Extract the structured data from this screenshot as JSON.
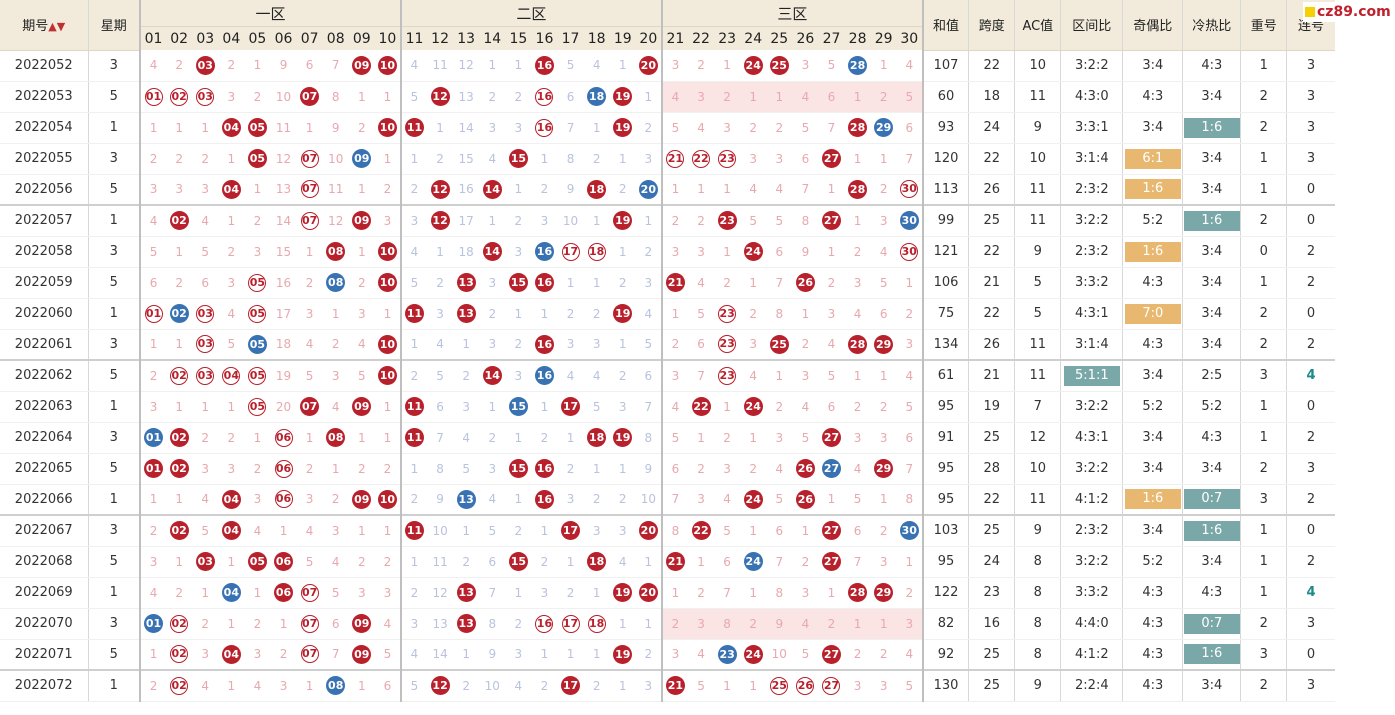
{
  "brand": "cz89.com",
  "header": {
    "issue_label": "期号",
    "sort_icon": "▲▼",
    "weekday_label": "星期",
    "zones": [
      "一区",
      "二区",
      "三区"
    ],
    "numbers": [
      "01",
      "02",
      "03",
      "04",
      "05",
      "06",
      "07",
      "08",
      "09",
      "10",
      "11",
      "12",
      "13",
      "14",
      "15",
      "16",
      "17",
      "18",
      "19",
      "20",
      "21",
      "22",
      "23",
      "24",
      "25",
      "26",
      "27",
      "28",
      "29",
      "30"
    ],
    "stats": [
      "和值",
      "跨度",
      "AC值",
      "区间比",
      "奇偶比",
      "冷热比",
      "重号",
      "连号"
    ]
  },
  "rows": [
    {
      "issue": "2022052",
      "wd": "3",
      "group": false,
      "cells": [
        "4",
        "2",
        "R03",
        "2",
        "1",
        "9",
        "6",
        "7",
        "R09",
        "R10",
        "4",
        "11",
        "12",
        "1",
        "1",
        "R16",
        "5",
        "4",
        "1",
        "R20",
        "3",
        "2",
        "1",
        "R24",
        "R25",
        "3",
        "5",
        "B28",
        "1",
        "4"
      ],
      "sum": "107",
      "span": "22",
      "ac": "10",
      "qj": "3:2:2",
      "jo": "3:4",
      "lr": "4:3",
      "ch": "1",
      "lh": "3"
    },
    {
      "issue": "2022053",
      "wd": "5",
      "group": false,
      "pink": true,
      "cells": [
        "O01",
        "O02",
        "O03",
        "3",
        "2",
        "10",
        "R07",
        "8",
        "1",
        "1",
        "5",
        "R12",
        "13",
        "2",
        "2",
        "O16",
        "6",
        "B18",
        "R19",
        "1",
        "4",
        "3",
        "2",
        "1",
        "1",
        "4",
        "6",
        "1",
        "2",
        "5"
      ],
      "sum": "60",
      "span": "18",
      "ac": "11",
      "qj": "4:3:0",
      "jo": "4:3",
      "lr": "3:4",
      "ch": "2",
      "lh": "3"
    },
    {
      "issue": "2022054",
      "wd": "1",
      "group": false,
      "cells": [
        "1",
        "1",
        "1",
        "R04",
        "R05",
        "11",
        "1",
        "9",
        "2",
        "R10",
        "R11",
        "1",
        "14",
        "3",
        "3",
        "O16",
        "7",
        "1",
        "R19",
        "2",
        "5",
        "4",
        "3",
        "2",
        "2",
        "5",
        "7",
        "R28",
        "B29",
        "6"
      ],
      "sum": "93",
      "span": "24",
      "ac": "9",
      "qj": "3:3:1",
      "jo": "3:4",
      "lr": "T1:6",
      "ch": "2",
      "lh": "3"
    },
    {
      "issue": "2022055",
      "wd": "3",
      "group": false,
      "cells": [
        "2",
        "2",
        "2",
        "1",
        "R05",
        "12",
        "O07",
        "10",
        "B09",
        "1",
        "1",
        "2",
        "15",
        "4",
        "R15",
        "1",
        "8",
        "2",
        "1",
        "3",
        "O21",
        "O22",
        "O23",
        "3",
        "3",
        "6",
        "R27",
        "1",
        "1",
        "7"
      ],
      "sum": "120",
      "span": "22",
      "ac": "10",
      "qj": "3:1:4",
      "jo": "O6:1",
      "lr": "3:4",
      "ch": "1",
      "lh": "3"
    },
    {
      "issue": "2022056",
      "wd": "5",
      "group": false,
      "cells": [
        "3",
        "3",
        "3",
        "R04",
        "1",
        "13",
        "O07",
        "11",
        "1",
        "2",
        "2",
        "R12",
        "16",
        "R14",
        "1",
        "2",
        "9",
        "R18",
        "2",
        "B20",
        "1",
        "1",
        "1",
        "4",
        "4",
        "7",
        "1",
        "R28",
        "2",
        "O30"
      ],
      "sum": "113",
      "span": "26",
      "ac": "11",
      "qj": "2:3:2",
      "jo": "O1:6",
      "lr": "3:4",
      "ch": "1",
      "lh": "0"
    },
    {
      "issue": "2022057",
      "wd": "1",
      "group": true,
      "cells": [
        "4",
        "R02",
        "4",
        "1",
        "2",
        "14",
        "O07",
        "12",
        "R09",
        "3",
        "3",
        "R12",
        "17",
        "1",
        "2",
        "3",
        "10",
        "1",
        "R19",
        "1",
        "2",
        "2",
        "R23",
        "5",
        "5",
        "8",
        "R27",
        "1",
        "3",
        "B30"
      ],
      "sum": "99",
      "span": "25",
      "ac": "11",
      "qj": "3:2:2",
      "jo": "5:2",
      "lr": "T1:6",
      "ch": "2",
      "lh": "0"
    },
    {
      "issue": "2022058",
      "wd": "3",
      "group": false,
      "cells": [
        "5",
        "1",
        "5",
        "2",
        "3",
        "15",
        "1",
        "R08",
        "1",
        "R10",
        "4",
        "1",
        "18",
        "R14",
        "3",
        "B16",
        "O17",
        "O18",
        "1",
        "2",
        "3",
        "3",
        "1",
        "R24",
        "6",
        "9",
        "1",
        "2",
        "4",
        "O30"
      ],
      "sum": "121",
      "span": "22",
      "ac": "9",
      "qj": "2:3:2",
      "jo": "O1:6",
      "lr": "3:4",
      "ch": "0",
      "lh": "2"
    },
    {
      "issue": "2022059",
      "wd": "5",
      "group": false,
      "cells": [
        "6",
        "2",
        "6",
        "3",
        "O05",
        "16",
        "2",
        "B08",
        "2",
        "R10",
        "5",
        "2",
        "R13",
        "3",
        "R15",
        "R16",
        "1",
        "1",
        "2",
        "3",
        "R21",
        "4",
        "2",
        "1",
        "7",
        "R26",
        "2",
        "3",
        "5",
        "1"
      ],
      "sum": "106",
      "span": "21",
      "ac": "5",
      "qj": "3:3:2",
      "jo": "4:3",
      "lr": "3:4",
      "ch": "1",
      "lh": "2"
    },
    {
      "issue": "2022060",
      "wd": "1",
      "group": false,
      "cells": [
        "O01",
        "B02",
        "O03",
        "4",
        "O05",
        "17",
        "3",
        "1",
        "3",
        "1",
        "R11",
        "3",
        "R13",
        "2",
        "1",
        "1",
        "2",
        "2",
        "R19",
        "4",
        "1",
        "5",
        "O23",
        "2",
        "8",
        "1",
        "3",
        "4",
        "6",
        "2"
      ],
      "sum": "75",
      "span": "22",
      "ac": "5",
      "qj": "4:3:1",
      "jo": "O7:0",
      "lr": "3:4",
      "ch": "2",
      "lh": "0"
    },
    {
      "issue": "2022061",
      "wd": "3",
      "group": false,
      "cells": [
        "1",
        "1",
        "O03",
        "5",
        "B05",
        "18",
        "4",
        "2",
        "4",
        "R10",
        "1",
        "4",
        "1",
        "3",
        "2",
        "R16",
        "3",
        "3",
        "1",
        "5",
        "2",
        "6",
        "O23",
        "3",
        "R25",
        "2",
        "4",
        "R28",
        "R29",
        "3"
      ],
      "sum": "134",
      "span": "26",
      "ac": "11",
      "qj": "3:1:4",
      "jo": "4:3",
      "lr": "3:4",
      "ch": "2",
      "lh": "2"
    },
    {
      "issue": "2022062",
      "wd": "5",
      "group": true,
      "cells": [
        "2",
        "O02",
        "O03",
        "O04",
        "O05",
        "19",
        "5",
        "3",
        "5",
        "R10",
        "2",
        "5",
        "2",
        "R14",
        "3",
        "B16",
        "4",
        "4",
        "2",
        "6",
        "3",
        "7",
        "O23",
        "4",
        "1",
        "3",
        "5",
        "1",
        "1",
        "4"
      ],
      "sum": "61",
      "span": "21",
      "ac": "11",
      "qj": "T5:1:1",
      "jo": "3:4",
      "lr": "2:5",
      "ch": "3",
      "lh": "L4"
    },
    {
      "issue": "2022063",
      "wd": "1",
      "group": false,
      "cells": [
        "3",
        "1",
        "1",
        "1",
        "O05",
        "20",
        "R07",
        "4",
        "R09",
        "1",
        "R11",
        "6",
        "3",
        "1",
        "B15",
        "1",
        "R17",
        "5",
        "3",
        "7",
        "4",
        "R22",
        "1",
        "R24",
        "2",
        "4",
        "6",
        "2",
        "2",
        "5"
      ],
      "sum": "95",
      "span": "19",
      "ac": "7",
      "qj": "3:2:2",
      "jo": "5:2",
      "lr": "5:2",
      "ch": "1",
      "lh": "0"
    },
    {
      "issue": "2022064",
      "wd": "3",
      "group": false,
      "cells": [
        "B01",
        "R02",
        "2",
        "2",
        "1",
        "O06",
        "1",
        "R08",
        "1",
        "1",
        "R11",
        "7",
        "4",
        "2",
        "1",
        "2",
        "1",
        "R18",
        "R19",
        "8",
        "5",
        "1",
        "2",
        "1",
        "3",
        "5",
        "R27",
        "3",
        "3",
        "6"
      ],
      "sum": "91",
      "span": "25",
      "ac": "12",
      "qj": "4:3:1",
      "jo": "3:4",
      "lr": "4:3",
      "ch": "1",
      "lh": "2"
    },
    {
      "issue": "2022065",
      "wd": "5",
      "group": false,
      "cells": [
        "R01",
        "R02",
        "3",
        "3",
        "2",
        "O06",
        "2",
        "1",
        "2",
        "2",
        "1",
        "8",
        "5",
        "3",
        "R15",
        "R16",
        "2",
        "1",
        "1",
        "9",
        "6",
        "2",
        "3",
        "2",
        "4",
        "R26",
        "B27",
        "4",
        "R29",
        "7"
      ],
      "sum": "95",
      "span": "28",
      "ac": "10",
      "qj": "3:2:2",
      "jo": "3:4",
      "lr": "3:4",
      "ch": "2",
      "lh": "3"
    },
    {
      "issue": "2022066",
      "wd": "1",
      "group": false,
      "cells": [
        "1",
        "1",
        "4",
        "R04",
        "3",
        "O06",
        "3",
        "2",
        "R09",
        "R10",
        "2",
        "9",
        "B13",
        "4",
        "1",
        "R16",
        "3",
        "2",
        "2",
        "10",
        "7",
        "3",
        "4",
        "R24",
        "5",
        "R26",
        "1",
        "5",
        "1",
        "8"
      ],
      "sum": "95",
      "span": "22",
      "ac": "11",
      "qj": "4:1:2",
      "jo": "O1:6",
      "lr": "T0:7",
      "ch": "3",
      "lh": "2"
    },
    {
      "issue": "2022067",
      "wd": "3",
      "group": true,
      "cells": [
        "2",
        "R02",
        "5",
        "R04",
        "4",
        "1",
        "4",
        "3",
        "1",
        "1",
        "R11",
        "10",
        "1",
        "5",
        "2",
        "1",
        "R17",
        "3",
        "3",
        "R20",
        "8",
        "R22",
        "5",
        "1",
        "6",
        "1",
        "R27",
        "6",
        "2",
        "B30"
      ],
      "sum": "103",
      "span": "25",
      "ac": "9",
      "qj": "2:3:2",
      "jo": "3:4",
      "lr": "T1:6",
      "ch": "1",
      "lh": "0"
    },
    {
      "issue": "2022068",
      "wd": "5",
      "group": false,
      "cells": [
        "3",
        "1",
        "R03",
        "1",
        "R05",
        "R06",
        "5",
        "4",
        "2",
        "2",
        "1",
        "11",
        "2",
        "6",
        "R15",
        "2",
        "1",
        "R18",
        "4",
        "1",
        "R21",
        "1",
        "6",
        "B24",
        "7",
        "2",
        "R27",
        "7",
        "3",
        "1"
      ],
      "sum": "95",
      "span": "24",
      "ac": "8",
      "qj": "3:2:2",
      "jo": "5:2",
      "lr": "3:4",
      "ch": "1",
      "lh": "2"
    },
    {
      "issue": "2022069",
      "wd": "1",
      "group": false,
      "cells": [
        "4",
        "2",
        "1",
        "B04",
        "1",
        "R06",
        "O07",
        "5",
        "3",
        "3",
        "2",
        "12",
        "R13",
        "7",
        "1",
        "3",
        "2",
        "1",
        "R19",
        "R20",
        "1",
        "2",
        "7",
        "1",
        "8",
        "3",
        "1",
        "R28",
        "R29",
        "2"
      ],
      "sum": "122",
      "span": "23",
      "ac": "8",
      "qj": "3:3:2",
      "jo": "4:3",
      "lr": "4:3",
      "ch": "1",
      "lh": "L4"
    },
    {
      "issue": "2022070",
      "wd": "3",
      "group": false,
      "pink": true,
      "cells": [
        "B01",
        "O02",
        "2",
        "1",
        "2",
        "1",
        "O07",
        "6",
        "R09",
        "4",
        "3",
        "13",
        "R13",
        "8",
        "2",
        "O16",
        "O17",
        "O18",
        "1",
        "1",
        "2",
        "3",
        "8",
        "2",
        "9",
        "4",
        "2",
        "1",
        "1",
        "3"
      ],
      "sum": "82",
      "span": "16",
      "ac": "8",
      "qj": "4:4:0",
      "jo": "4:3",
      "lr": "T0:7",
      "ch": "2",
      "lh": "3"
    },
    {
      "issue": "2022071",
      "wd": "5",
      "group": false,
      "cells": [
        "1",
        "O02",
        "3",
        "R04",
        "3",
        "2",
        "O07",
        "7",
        "R09",
        "5",
        "4",
        "14",
        "1",
        "9",
        "3",
        "1",
        "1",
        "1",
        "R19",
        "2",
        "3",
        "4",
        "B23",
        "R24",
        "10",
        "5",
        "R27",
        "2",
        "2",
        "4"
      ],
      "sum": "92",
      "span": "25",
      "ac": "8",
      "qj": "4:1:2",
      "jo": "4:3",
      "lr": "T1:6",
      "ch": "3",
      "lh": "0"
    },
    {
      "issue": "2022072",
      "wd": "1",
      "group": true,
      "cells": [
        "2",
        "O02",
        "4",
        "1",
        "4",
        "3",
        "1",
        "B08",
        "1",
        "6",
        "5",
        "R12",
        "2",
        "10",
        "4",
        "2",
        "R17",
        "2",
        "1",
        "3",
        "R21",
        "5",
        "1",
        "1",
        "O25",
        "O26",
        "O27",
        "3",
        "3",
        "5"
      ],
      "sum": "130",
      "span": "25",
      "ac": "9",
      "qj": "2:2:4",
      "jo": "4:3",
      "lr": "3:4",
      "ch": "2",
      "lh": "3"
    }
  ]
}
